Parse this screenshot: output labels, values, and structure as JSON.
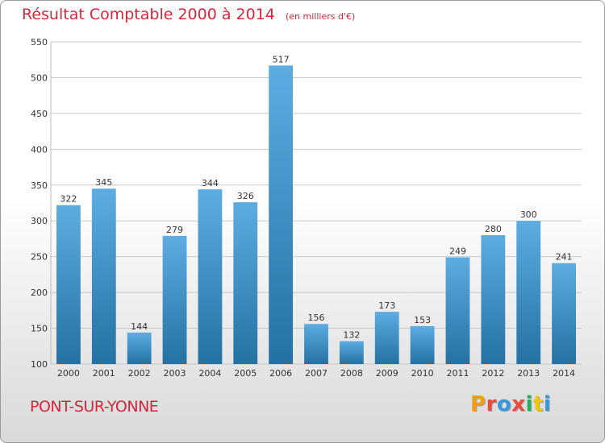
{
  "header": {
    "title": "Résultat Comptable 2000 à 2014",
    "subtitle": "(en milliers d'€)"
  },
  "footer": {
    "commune": "PONT-SUR-YONNE",
    "logo": "Proxiti",
    "logo_colors": [
      "#f39c12",
      "#e74c3c",
      "#3498db",
      "#e74c3c",
      "#27ae60",
      "#f1c40f",
      "#3498db"
    ]
  },
  "colors": {
    "bar_top": "#5dade2",
    "bar_bottom": "#2471a3",
    "grid": "#c8c8c8",
    "axis_text": "#333333",
    "accent_red": "#d0283c"
  },
  "chart_data": {
    "type": "bar",
    "title": "Résultat Comptable 2000 à 2014",
    "subtitle": "(en milliers d'€)",
    "xlabel": "",
    "ylabel": "",
    "ylim": [
      100,
      550
    ],
    "yticks": [
      100,
      150,
      200,
      250,
      300,
      350,
      400,
      450,
      500,
      550
    ],
    "grid": true,
    "legend": "none",
    "categories": [
      "2000",
      "2001",
      "2002",
      "2003",
      "2004",
      "2005",
      "2006",
      "2007",
      "2008",
      "2009",
      "2010",
      "2011",
      "2012",
      "2013",
      "2014"
    ],
    "values": [
      322,
      345,
      144,
      279,
      344,
      326,
      517,
      156,
      132,
      173,
      153,
      249,
      280,
      300,
      241
    ]
  }
}
